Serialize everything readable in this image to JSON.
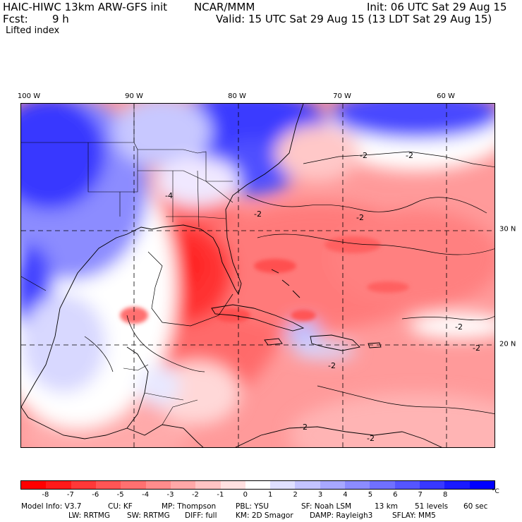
{
  "header": {
    "model_title": "HAIC-HIWC 13km ARW-GFS init",
    "center": "NCAR/MMM",
    "init_time": "Init: 06 UTC Sat 29 Aug 15",
    "fcst_label": "Fcst:",
    "fcst_hours": "9 h",
    "valid_time": "Valid: 15 UTC Sat 29 Aug 15 (13 LDT Sat 29 Aug 15)",
    "field_name": "Lifted index"
  },
  "map": {
    "lon_labels": [
      "100 W",
      "90 W",
      "80 W",
      "70 W",
      "60 W"
    ],
    "lat_labels": [
      "30 N",
      "20 N"
    ],
    "contour_labels": [
      "-4",
      "-2",
      "-2",
      "-2",
      "-2",
      "-2",
      "-2",
      "-2",
      "-2",
      "-2"
    ],
    "region": "Gulf of Mexico, Caribbean and western Atlantic"
  },
  "colorbar": {
    "ticks": [
      "-8",
      "-7",
      "-6",
      "-5",
      "-4",
      "-3",
      "-2",
      "-1",
      "0",
      "1",
      "2",
      "3",
      "4",
      "5",
      "6",
      "7",
      "8"
    ],
    "unit": "°C",
    "colors": [
      "#ff0000",
      "#ff1a1a",
      "#ff3838",
      "#ff5555",
      "#ff7070",
      "#ff8c8c",
      "#ffa8a8",
      "#ffc4c4",
      "#ffe0e0",
      "#ffffff",
      "#e0e0ff",
      "#c4c4ff",
      "#a8a8ff",
      "#8c8cff",
      "#7070ff",
      "#5555ff",
      "#3838ff",
      "#1a1aff",
      "#0000ff"
    ]
  },
  "footer": {
    "line1": [
      "Model Info: V3.7",
      "CU: KF",
      "MP: Thompson",
      "PBL: YSU",
      "SF: Noah LSM",
      "13 km",
      "51 levels",
      "60 sec"
    ],
    "line2": [
      "LW: RRTMG",
      "SW: RRTMG",
      "DIFF: full",
      "KM: 2D Smagor",
      "DAMP: Rayleigh3",
      "SFLAY: MM5"
    ]
  }
}
